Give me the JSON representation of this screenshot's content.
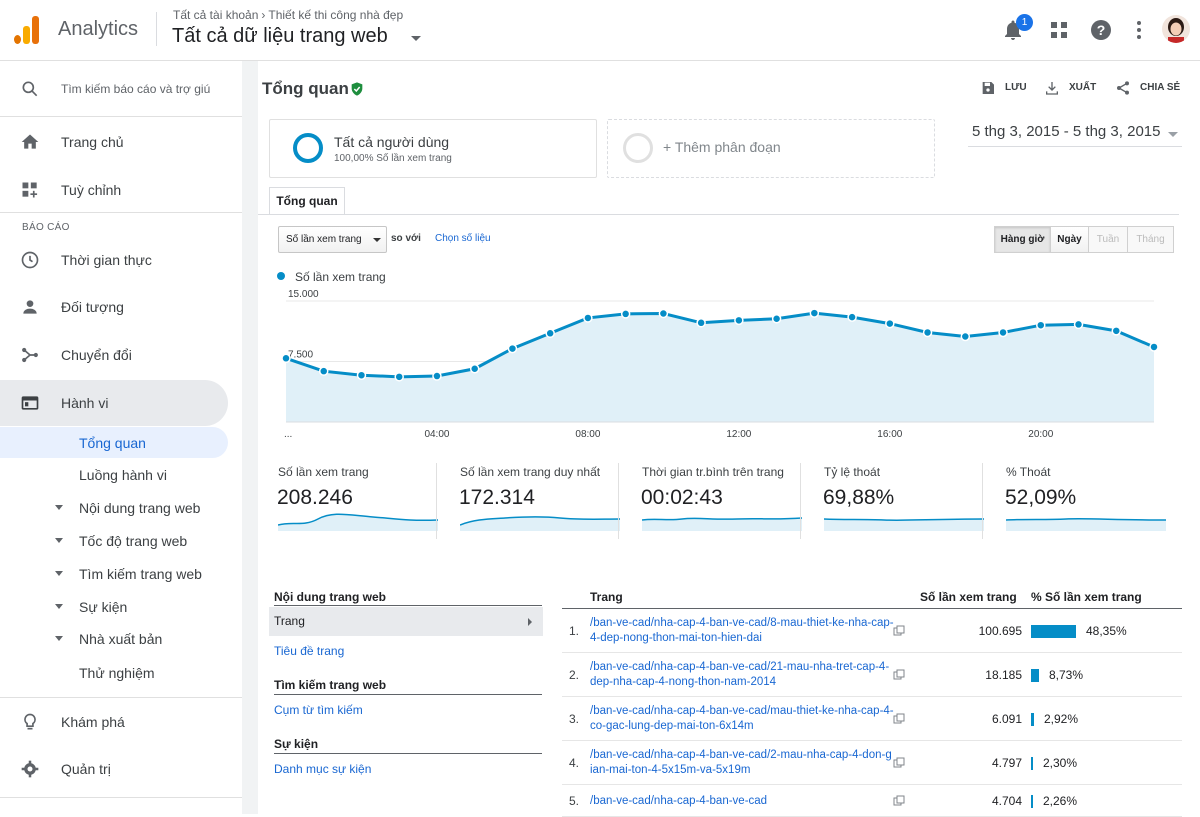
{
  "header": {
    "app_name": "Analytics",
    "breadcrumb_account": "Tất cả tài khoản",
    "breadcrumb_property": "Thiết kế thi công nhà đẹp",
    "view_title": "Tất cả dữ liệu trang web",
    "notification_count": "1",
    "icons": [
      "notifications-icon",
      "apps-icon",
      "help-icon",
      "more-vert-icon",
      "avatar"
    ]
  },
  "sidebar": {
    "search_placeholder": "Tìm kiếm báo cáo và trợ giú",
    "home": "Trang chủ",
    "customize": "Tuỳ chỉnh",
    "section_reports": "BÁO CÁO",
    "realtime": "Thời gian thực",
    "audience": "Đối tượng",
    "acquisition": "Chuyển đổi",
    "behavior": "Hành vi",
    "behavior_sub": {
      "overview": "Tổng quan",
      "flow": "Luồng hành vi",
      "site_content": "Nội dung trang web",
      "site_speed": "Tốc độ trang web",
      "site_search": "Tìm kiếm trang web",
      "events": "Sự kiện",
      "publisher": "Nhà xuất bản",
      "experiments": "Thử nghiệm"
    },
    "discover": "Khám phá",
    "admin": "Quản trị"
  },
  "main": {
    "title": "Tổng quan",
    "actions": {
      "save": "LƯU",
      "export": "XUẤT",
      "share": "CHIA SẺ"
    },
    "segment_all": {
      "title": "Tất cả người dùng",
      "subtitle": "100,00% Số lần xem trang"
    },
    "segment_add": "+ Thêm phân đoạn",
    "date_range": "5 thg 3, 2015 - 5 thg 3, 2015",
    "tab": "Tổng quan",
    "metric_select": "Số lần xem trang",
    "compare_with": "so với",
    "choose_metric": "Chọn số liệu",
    "granularity": [
      "Hàng giờ",
      "Ngày",
      "Tuần",
      "Tháng"
    ],
    "legend": "Số lần xem trang"
  },
  "chart_data": {
    "type": "area",
    "title": "",
    "series": [
      {
        "name": "Số lần xem trang",
        "values": [
          7900,
          6300,
          5800,
          5600,
          5700,
          6600,
          9100,
          11000,
          12900,
          13400,
          13450,
          12300,
          12600,
          12800,
          13500,
          13000,
          12200,
          11100,
          10600,
          11100,
          12000,
          12100,
          11300,
          9300
        ]
      }
    ],
    "x": [
      "00:00",
      "01:00",
      "02:00",
      "03:00",
      "04:00",
      "05:00",
      "06:00",
      "07:00",
      "08:00",
      "09:00",
      "10:00",
      "11:00",
      "12:00",
      "13:00",
      "14:00",
      "15:00",
      "16:00",
      "17:00",
      "18:00",
      "19:00",
      "20:00",
      "21:00",
      "22:00",
      "23:00"
    ],
    "x_tick_labels": [
      "...",
      "04:00",
      "08:00",
      "12:00",
      "16:00",
      "20:00"
    ],
    "y_tick_labels": [
      "15.000",
      "7.500"
    ],
    "ylim": [
      0,
      15000
    ],
    "color": "#058dc7",
    "fill": "#e0f0f8",
    "grid": true
  },
  "metrics": [
    {
      "label": "Số lần xem trang",
      "value": "208.246"
    },
    {
      "label": "Số lần xem trang duy nhất",
      "value": "172.314"
    },
    {
      "label": "Thời gian tr.bình trên trang",
      "value": "00:02:43"
    },
    {
      "label": "Tỷ lệ thoát",
      "value": "69,88%"
    },
    {
      "label": "% Thoát",
      "value": "52,09%"
    }
  ],
  "left_nav": {
    "site_content_header": "Nội dung trang web",
    "page": "Trang",
    "page_title": "Tiêu đề trang",
    "site_search_header": "Tìm kiếm trang web",
    "search_term": "Cụm từ tìm kiếm",
    "events_header": "Sự kiện",
    "event_category": "Danh mục sự kiện"
  },
  "table": {
    "col_page": "Trang",
    "col_views": "Số lần xem trang",
    "col_pct": "% Số lần xem trang",
    "rows": [
      {
        "num": "1.",
        "page": "/ban-ve-cad/nha-cap-4-ban-ve-cad/8-mau-thiet-ke-nha-cap-4-dep-nong-thon-mai-ton-hien-dai",
        "views": "100.695",
        "pct": "48,35%",
        "share": 48.35
      },
      {
        "num": "2.",
        "page": "/ban-ve-cad/nha-cap-4-ban-ve-cad/21-mau-nha-tret-cap-4-dep-nha-cap-4-nong-thon-nam-2014",
        "views": "18.185",
        "pct": "8,73%",
        "share": 8.73
      },
      {
        "num": "3.",
        "page": "/ban-ve-cad/nha-cap-4-ban-ve-cad/mau-thiet-ke-nha-cap-4-co-gac-lung-dep-mai-ton-6x14m",
        "views": "6.091",
        "pct": "2,92%",
        "share": 2.92
      },
      {
        "num": "4.",
        "page": "/ban-ve-cad/nha-cap-4-ban-ve-cad/2-mau-nha-cap-4-don-gian-mai-ton-4-5x15m-va-5x19m",
        "views": "4.797",
        "pct": "2,30%",
        "share": 2.3
      },
      {
        "num": "5.",
        "page": "/ban-ve-cad/nha-cap-4-ban-ve-cad",
        "views": "4.704",
        "pct": "2,26%",
        "share": 2.26
      }
    ]
  }
}
